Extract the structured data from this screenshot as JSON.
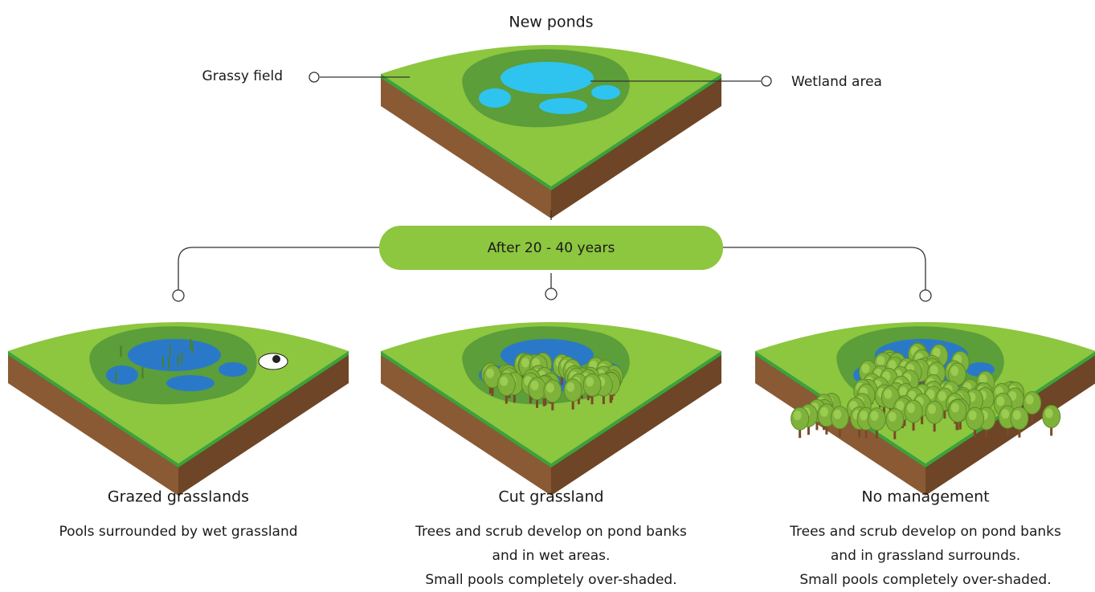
{
  "title": "New ponds",
  "labels": {
    "grassy_field": "Grassy field",
    "wetland_area": "Wetland area"
  },
  "stage": "After 20 - 40 years",
  "outcomes": [
    {
      "title": "Grazed grasslands",
      "description": [
        "Pools surrounded by wet grassland"
      ]
    },
    {
      "title": "Cut grassland",
      "description": [
        "Trees and scrub develop on pond banks",
        "and in wet areas.",
        "Small pools completely over-shaded."
      ]
    },
    {
      "title": "No management",
      "description": [
        "Trees and scrub develop on pond banks",
        "and in grassland surrounds.",
        "Small pools completely over-shaded."
      ]
    }
  ]
}
